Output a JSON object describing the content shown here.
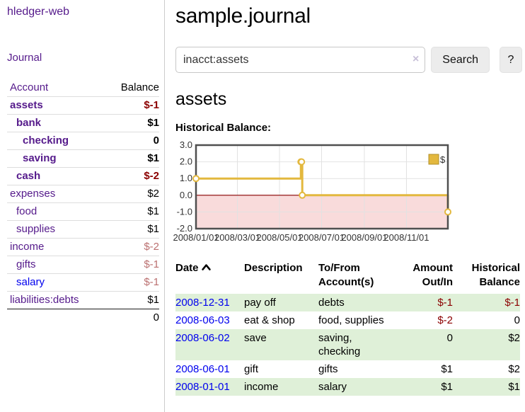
{
  "sidebar": {
    "brand": "hledger-web",
    "journal_link": "Journal",
    "account_header": "Account",
    "balance_header": "Balance",
    "accounts": [
      {
        "name": "assets",
        "indent": 1,
        "bold": true,
        "balance": "$-1",
        "negative": true,
        "link_color": "purple"
      },
      {
        "name": "bank",
        "indent": 2,
        "bold": true,
        "balance": "$1",
        "negative": false,
        "link_color": "purple"
      },
      {
        "name": "checking",
        "indent": 3,
        "bold": true,
        "balance": "0",
        "negative": false,
        "link_color": "purple"
      },
      {
        "name": "saving",
        "indent": 3,
        "bold": true,
        "balance": "$1",
        "negative": false,
        "link_color": "purple"
      },
      {
        "name": "cash",
        "indent": 2,
        "bold": true,
        "balance": "$-2",
        "negative": true,
        "link_color": "purple"
      },
      {
        "name": "expenses",
        "indent": 1,
        "bold": false,
        "balance": "$2",
        "negative": false,
        "link_color": "purple"
      },
      {
        "name": "food",
        "indent": 2,
        "bold": false,
        "balance": "$1",
        "negative": false,
        "link_color": "purple"
      },
      {
        "name": "supplies",
        "indent": 2,
        "bold": false,
        "balance": "$1",
        "negative": false,
        "link_color": "purple"
      },
      {
        "name": "income",
        "indent": 1,
        "bold": false,
        "balance": "$-2",
        "negative": true,
        "link_color": "purple"
      },
      {
        "name": "gifts",
        "indent": 2,
        "bold": false,
        "balance": "$-1",
        "negative": true,
        "link_color": "purple"
      },
      {
        "name": "salary",
        "indent": 2,
        "bold": false,
        "balance": "$-1",
        "negative": true,
        "link_color": "blue"
      },
      {
        "name": "liabilities:debts",
        "indent": 1,
        "bold": false,
        "balance": "$1",
        "negative": false,
        "link_color": "purple"
      }
    ],
    "total": "0"
  },
  "header": {
    "title": "sample.journal"
  },
  "search": {
    "query": "inacct:assets",
    "clear_icon": "×",
    "button": "Search",
    "help_button": "?"
  },
  "account_page": {
    "heading": "assets",
    "chart_title": "Historical Balance:"
  },
  "chart_data": {
    "type": "line",
    "step": true,
    "title": "Historical Balance",
    "legend": "$",
    "legend_position": "top-right",
    "ylim": [
      -2.0,
      3.0
    ],
    "y_ticks": [
      "3.0",
      "2.0",
      "1.0",
      "0.0",
      "-1.0",
      "-2.0"
    ],
    "x_ticks": [
      {
        "date": "2008-01-01",
        "label": "2008/01/01"
      },
      {
        "date": "2008-03-01",
        "label": "2008/03/01"
      },
      {
        "date": "2008-05-01",
        "label": "2008/05/01"
      },
      {
        "date": "2008-07-01",
        "label": "2008/07/01"
      },
      {
        "date": "2008-09-01",
        "label": "2008/09/01"
      },
      {
        "date": "2008-11-01",
        "label": "2008/11/01"
      }
    ],
    "series": [
      {
        "name": "$",
        "points": [
          [
            "2008-01-01",
            1
          ],
          [
            "2008-06-01",
            2
          ],
          [
            "2008-06-02",
            2
          ],
          [
            "2008-06-03",
            0
          ],
          [
            "2008-12-31",
            -1
          ]
        ]
      }
    ],
    "grid": true,
    "colors": {
      "line": "#e3b83e",
      "marker_fill": "#ffffff",
      "legend_border": "#b08f28",
      "zero_line": "#8b0000",
      "negative_region": "#f9dbdb",
      "border": "#4f4f4f",
      "grid": "#e2e2e2"
    }
  },
  "register": {
    "headers": [
      "Date",
      "Description",
      "To/From Account(s)",
      "Amount Out/In",
      "Historical Balance"
    ],
    "sort_icon": "chevron-up",
    "rows": [
      {
        "date": "2008-12-31",
        "description": "pay off",
        "accounts": "debts",
        "amount": "$-1",
        "amount_negative": true,
        "balance": "$-1",
        "balance_negative": true,
        "shaded": true
      },
      {
        "date": "2008-06-03",
        "description": "eat & shop",
        "accounts": "food, supplies",
        "amount": "$-2",
        "amount_negative": true,
        "balance": "0",
        "balance_negative": false,
        "shaded": false
      },
      {
        "date": "2008-06-02",
        "description": "save",
        "accounts": "saving, checking",
        "amount": "0",
        "amount_negative": false,
        "balance": "$2",
        "balance_negative": false,
        "shaded": true
      },
      {
        "date": "2008-06-01",
        "description": "gift",
        "accounts": "gifts",
        "amount": "$1",
        "amount_negative": false,
        "balance": "$2",
        "balance_negative": false,
        "shaded": false
      },
      {
        "date": "2008-01-01",
        "description": "income",
        "accounts": "salary",
        "amount": "$1",
        "amount_negative": false,
        "balance": "$1",
        "balance_negative": false,
        "shaded": true
      }
    ]
  }
}
